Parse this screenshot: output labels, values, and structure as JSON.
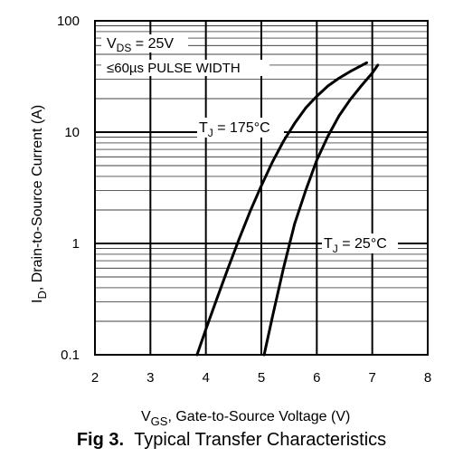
{
  "chart_data": {
    "type": "line",
    "xlabel_main": "V",
    "xlabel_sub": "GS",
    "xlabel_rest": ", Gate-to-Source Voltage (V)",
    "ylabel_main": "I",
    "ylabel_sub": "D",
    "ylabel_rest": ", Drain-to-Source Current (A)",
    "xlim": [
      2,
      8
    ],
    "ylim": [
      0.1,
      100
    ],
    "y_scale": "log",
    "grid": true,
    "x_ticks": [
      "2",
      "3",
      "4",
      "5",
      "6",
      "7",
      "8"
    ],
    "y_ticks": [
      "0.1",
      "1",
      "10",
      "100"
    ],
    "annotations": {
      "vds_main": "V",
      "vds_sub": "DS",
      "vds_rest": " = 25V",
      "pulse": "≤60µs PULSE WIDTH"
    },
    "series": [
      {
        "name": "T_J = 175°C",
        "label_main": "T",
        "label_sub": "J",
        "label_rest": " = 175°C",
        "x": [
          3.84,
          4.0,
          4.2,
          4.4,
          4.6,
          4.8,
          5.0,
          5.2,
          5.4,
          5.6,
          5.8,
          6.0,
          6.2,
          6.4,
          6.6,
          6.8,
          6.9
        ],
        "y": [
          0.1,
          0.17,
          0.32,
          0.6,
          1.1,
          1.95,
          3.3,
          5.4,
          8.3,
          12,
          16.5,
          21,
          26,
          30.5,
          35,
          39.5,
          42
        ]
      },
      {
        "name": "T_J = 25°C",
        "label_main": "T",
        "label_sub": "J",
        "label_rest": " = 25°C",
        "x": [
          5.05,
          5.2,
          5.4,
          5.6,
          5.8,
          6.0,
          6.2,
          6.4,
          6.6,
          6.8,
          7.0,
          7.1
        ],
        "y": [
          0.1,
          0.22,
          0.6,
          1.5,
          3.0,
          5.6,
          9.2,
          14,
          19.5,
          26,
          34,
          40
        ]
      }
    ]
  },
  "caption": {
    "figure": "Fig 3.",
    "title": "Typical Transfer Characteristics"
  }
}
